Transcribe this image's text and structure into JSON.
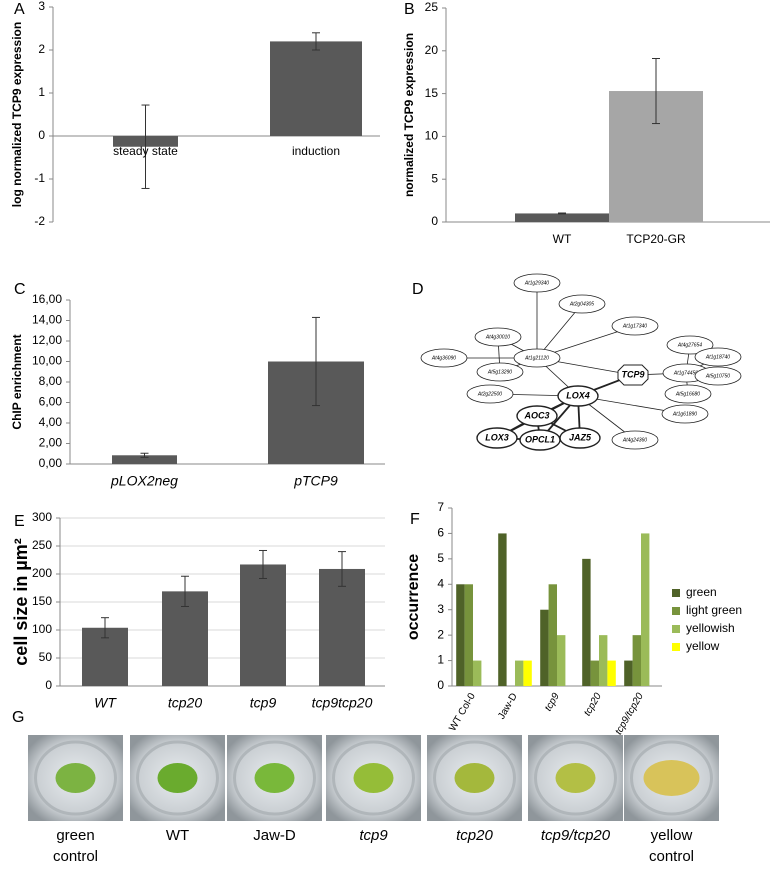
{
  "chart_data": [
    {
      "type": "bar",
      "panel": "A",
      "ylabel": "log normalized TCP9 expression",
      "categories": [
        "steady state",
        "induction"
      ],
      "values": [
        -0.25,
        2.2
      ],
      "errors": [
        0.97,
        0.2
      ],
      "color": "#595959",
      "ylim": [
        -2,
        3
      ],
      "yticks": [
        -2,
        -1,
        0,
        1,
        2,
        3
      ]
    },
    {
      "type": "bar",
      "panel": "B",
      "ylabel": "normalized TCP9 expression",
      "categories": [
        "WT",
        "TCP20-GR"
      ],
      "values": [
        1,
        15.3
      ],
      "errors": [
        0.05,
        3.8
      ],
      "colors": [
        "#595959",
        "#a6a6a6"
      ],
      "ylim": [
        0,
        25
      ],
      "yticks": [
        0,
        5,
        10,
        15,
        20,
        25
      ]
    },
    {
      "type": "bar",
      "panel": "C",
      "ylabel": "ChIP enrichment",
      "categories": [
        "pLOX2neg",
        "pTCP9"
      ],
      "values": [
        0.85,
        10.0
      ],
      "errors": [
        0.2,
        4.3
      ],
      "color": "#595959",
      "ylim": [
        0,
        16
      ],
      "yticks": [
        {
          "value": 0,
          "label": "0,00"
        },
        {
          "value": 2,
          "label": "2,00"
        },
        {
          "value": 4,
          "label": "4,00"
        },
        {
          "value": 6,
          "label": "6,00"
        },
        {
          "value": 8,
          "label": "8,00"
        },
        {
          "value": 10,
          "label": "10,00"
        },
        {
          "value": 12,
          "label": "12,00"
        },
        {
          "value": 14,
          "label": "14,00"
        },
        {
          "value": 16,
          "label": "16,00"
        }
      ]
    },
    {
      "type": "bar",
      "panel": "E",
      "ylabel": "cell size in µm²",
      "categories": [
        "WT",
        "tcp20",
        "tcp9",
        "tcp9tcp20"
      ],
      "values": [
        104,
        169,
        217,
        209
      ],
      "errors": [
        18,
        27,
        25,
        31
      ],
      "color": "#595959",
      "ylim": [
        0,
        300
      ],
      "yticks": [
        0,
        50,
        100,
        150,
        200,
        250,
        300
      ],
      "grid": true
    },
    {
      "type": "grouped_bar",
      "panel": "F",
      "ylabel": "occurrence",
      "categories": [
        "WT Col-0",
        "Jaw-D",
        "tcp9",
        "tcp20",
        "tcp9/tcp20"
      ],
      "series": [
        {
          "name": "green",
          "color": "#4f6228",
          "values": [
            4,
            6,
            3,
            5,
            1
          ]
        },
        {
          "name": "light green",
          "color": "#77933c",
          "values": [
            4,
            0,
            4,
            1,
            2
          ]
        },
        {
          "name": "yellowish",
          "color": "#9bbb59",
          "values": [
            1,
            1,
            2,
            2,
            6
          ]
        },
        {
          "name": "yellow",
          "color": "#ffff00",
          "values": [
            0,
            1,
            0,
            1,
            0
          ]
        }
      ],
      "ylim": [
        0,
        7
      ],
      "yticks": [
        0,
        1,
        2,
        3,
        4,
        5,
        6,
        7
      ],
      "legend": "right"
    }
  ],
  "network": {
    "panel": "D",
    "nodes": [
      "At1g29340",
      "At2g04305",
      "At1g17340",
      "At4g30010",
      "At4g36090",
      "At1g21120",
      "At5g13290",
      "TCP9",
      "At4g27654",
      "At1g18740",
      "At1g74450",
      "At5g10750",
      "At5g16680",
      "At2g22500",
      "LOX4",
      "At1g61890",
      "AOC3",
      "LOX3",
      "OPCL1",
      "JAZ5",
      "At4g24360"
    ]
  },
  "photos": {
    "panel": "G",
    "labels": [
      [
        "green",
        "control"
      ],
      [
        "WT"
      ],
      [
        "Jaw-D"
      ],
      [
        "tcp9"
      ],
      [
        "tcp20"
      ],
      [
        "tcp9/tcp20"
      ],
      [
        "yellow",
        "control"
      ]
    ]
  }
}
